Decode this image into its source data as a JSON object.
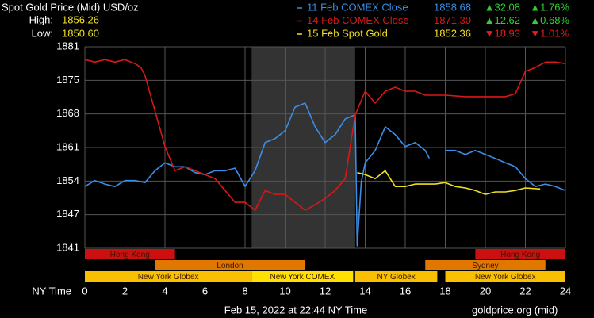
{
  "chart_data": {
    "type": "line",
    "title": "Spot Gold Price (Mid) USD/oz",
    "stats": {
      "names": [
        "High:",
        "Low:"
      ],
      "values": [
        1856.26,
        1850.6
      ],
      "value_labels": [
        "1856.26",
        "1850.60"
      ],
      "color": "#f0e020"
    },
    "x_label": "NY Time",
    "timestamp": "Feb 15, 2022 at 22:44 NY Time",
    "source": "goldprice.org (mid)",
    "xlim": [
      0,
      24
    ],
    "xticks": [
      0,
      2,
      4,
      6,
      8,
      10,
      12,
      14,
      16,
      18,
      20,
      22,
      24
    ],
    "ylim": [
      1840.6,
      1881.4
    ],
    "yticks": [
      {
        "value": 1840.6,
        "label": "1841"
      },
      {
        "value": 1847.4,
        "label": "1847"
      },
      {
        "value": 1854.2,
        "label": "1854"
      },
      {
        "value": 1861.0,
        "label": "1861"
      },
      {
        "value": 1867.8,
        "label": "1868"
      },
      {
        "value": 1874.6,
        "label": "1875"
      },
      {
        "value": 1881.4,
        "label": "1881"
      }
    ],
    "grid": true,
    "highlight_x": [
      8.33,
      13.5
    ],
    "up_color": "#33cc33",
    "down_color": "#e02020",
    "series": [
      {
        "name": "11 Feb COMEX Close",
        "color": "#3a8ee6",
        "close": {
          "value": 1858.68,
          "label": "1858.68"
        },
        "change": {
          "value": 32.08,
          "label": "▲32.08"
        },
        "change_pct": {
          "value": 1.76,
          "label": "▲1.76%"
        },
        "x": [
          0,
          0.5,
          1,
          1.5,
          2,
          2.5,
          3,
          3.5,
          4,
          4.5,
          5,
          5.5,
          6,
          6.5,
          7,
          7.5,
          8,
          8.5,
          9,
          9.5,
          10,
          10.5,
          11,
          11.5,
          12,
          12.5,
          13,
          13.5,
          13.6,
          13.8,
          14,
          14.5,
          15,
          15.5,
          16,
          16.5,
          17,
          17.2,
          17.5,
          18,
          18.5,
          19,
          19.5,
          20,
          20.5,
          21,
          21.5,
          22,
          22.5,
          23,
          23.5,
          24
        ],
        "values": [
          1853.1,
          1854.3,
          1853.6,
          1853.1,
          1854.3,
          1854.3,
          1853.9,
          1856.3,
          1857.9,
          1857.1,
          1857.1,
          1855.9,
          1855.5,
          1856.3,
          1856.3,
          1856.8,
          1853.1,
          1856.3,
          1862.0,
          1862.8,
          1864.4,
          1869.2,
          1870.0,
          1865.2,
          1862.0,
          1863.6,
          1866.8,
          1867.6,
          1841.1,
          1853.9,
          1857.9,
          1860.4,
          1865.2,
          1863.6,
          1861.2,
          1862.0,
          1860.4,
          1858.8,
          null,
          1860.4,
          1860.4,
          1859.6,
          1860.4,
          1859.6,
          1858.8,
          1857.9,
          1857.1,
          1854.7,
          1853.1,
          1853.6,
          1853.1,
          1852.3
        ]
      },
      {
        "name": "14 Feb COMEX Close",
        "color": "#d81818",
        "close": {
          "value": 1871.3,
          "label": "1871.30"
        },
        "change": {
          "value": 12.62,
          "label": "▲12.62"
        },
        "change_pct": {
          "value": 0.68,
          "label": "▲0.68%"
        },
        "x": [
          0,
          0.5,
          1,
          1.5,
          2,
          2.5,
          2.8,
          3,
          3.5,
          4,
          4.5,
          5,
          5.5,
          6,
          6.5,
          7,
          7.5,
          8,
          8.5,
          9,
          9.5,
          10,
          10.5,
          11,
          11.5,
          12,
          12.5,
          13,
          13.5,
          14,
          14.5,
          15,
          15.5,
          16,
          16.5,
          17,
          17.5,
          18,
          19,
          20,
          21,
          21.5,
          22,
          22.5,
          23,
          23.5,
          24
        ],
        "values": [
          1878.8,
          1878.3,
          1878.8,
          1878.3,
          1878.8,
          1878.0,
          1877.2,
          1875.6,
          1868.4,
          1861.2,
          1856.3,
          1857.1,
          1856.3,
          1855.5,
          1854.7,
          1852.3,
          1849.9,
          1849.9,
          1848.3,
          1852.3,
          1851.5,
          1851.5,
          1849.9,
          1848.3,
          1849.4,
          1850.7,
          1852.3,
          1854.7,
          1867.6,
          1872.4,
          1870.0,
          1872.4,
          1873.2,
          1872.4,
          1872.4,
          1871.6,
          1871.6,
          1871.6,
          1871.3,
          1871.3,
          1871.3,
          1871.9,
          1876.4,
          1877.2,
          1878.3,
          1878.3,
          1878.0
        ]
      },
      {
        "name": "15 Feb Spot Gold",
        "color": "#f0e020",
        "close": {
          "value": 1852.36,
          "label": "1852.36"
        },
        "change": {
          "value": -18.93,
          "label": "▼18.93"
        },
        "change_pct": {
          "value": -1.01,
          "label": "▼1.01%"
        },
        "x": [
          13.6,
          14,
          14.5,
          15,
          15.5,
          16,
          16.5,
          17,
          17.5,
          18,
          18.5,
          19,
          19.5,
          20,
          20.5,
          21,
          21.5,
          22,
          22.74
        ],
        "values": [
          1855.9,
          1855.5,
          1854.7,
          1856.3,
          1853.1,
          1853.1,
          1853.6,
          1853.6,
          1853.6,
          1853.9,
          1853.1,
          1852.8,
          1852.3,
          1851.5,
          1852.0,
          1852.0,
          1852.3,
          1852.8,
          1852.6
        ]
      }
    ],
    "sessions": [
      {
        "label": "Hong Kong",
        "start": 0,
        "end": 4.5,
        "row": 0,
        "color": "#cc1010"
      },
      {
        "label": "Hong Kong",
        "start": 19.5,
        "end": 24,
        "row": 0,
        "color": "#cc1010"
      },
      {
        "label": "London",
        "start": 3.5,
        "end": 11,
        "row": 1,
        "color": "#e07800"
      },
      {
        "label": "Sydney",
        "start": 17,
        "end": 23,
        "row": 1,
        "color": "#e07800"
      },
      {
        "label": "New York Globex",
        "start": 0,
        "end": 8.33,
        "row": 2,
        "color": "#f8c000"
      },
      {
        "label": "New York COMEX",
        "start": 8.33,
        "end": 13.4,
        "row": 2,
        "color": "#ffe000"
      },
      {
        "label": "NY Globex",
        "start": 13.5,
        "end": 17.6,
        "row": 2,
        "color": "#f8c000"
      },
      {
        "label": "New York Globex",
        "start": 18,
        "end": 24,
        "row": 2,
        "color": "#f8c000"
      }
    ]
  }
}
